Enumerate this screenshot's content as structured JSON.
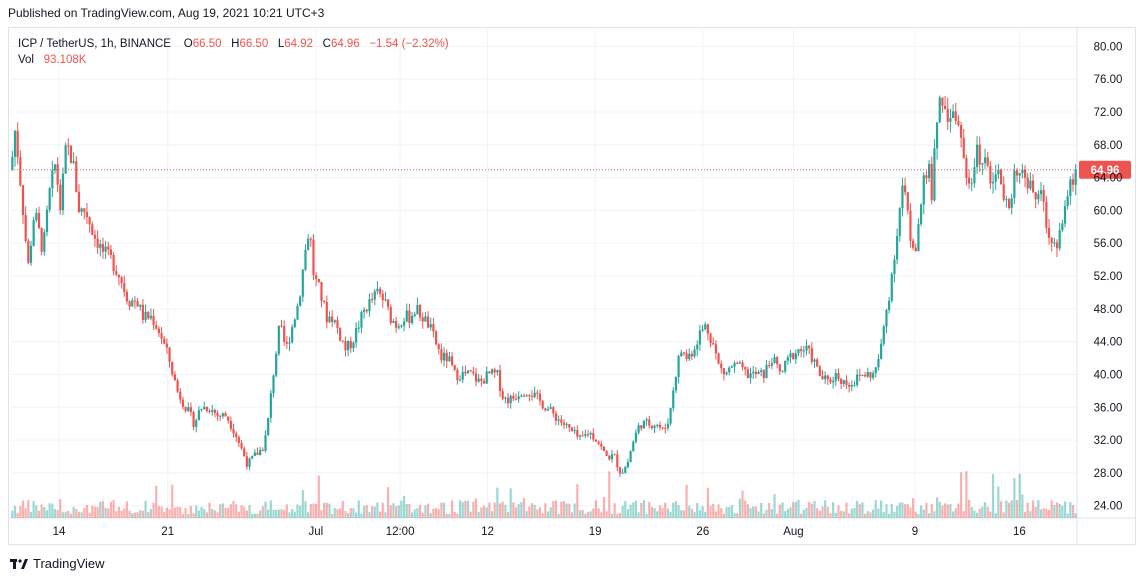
{
  "header": {
    "published": "Published on TradingView.com, Aug 19, 2021 10:21 UTC+3"
  },
  "legend": {
    "symbol": "ICP / TetherUS, 1h, BINANCE",
    "o_label": "O",
    "o_value": "66.50",
    "h_label": "H",
    "h_value": "66.50",
    "l_label": "L",
    "l_value": "64.92",
    "c_label": "C",
    "c_value": "64.96",
    "change": "−1.54 (−2.32%)",
    "vol_label": "Vol",
    "vol_value": "93.108K"
  },
  "footer": {
    "brand": "TradingView",
    "logo_icon": "tradingview-logo-icon"
  },
  "colors": {
    "up": "#26a69a",
    "down": "#ef5350",
    "grid": "#f0f3fa",
    "axis_text": "#131722",
    "price_line": "#ef5350"
  },
  "chart_data": {
    "type": "candlestick",
    "interval": "1h",
    "symbol": "ICP / TetherUS",
    "exchange": "BINANCE",
    "price_axis_side": "right",
    "ylim": [
      22.5,
      82.0
    ],
    "y_ticks": [
      24,
      28,
      32,
      36,
      40,
      44,
      48,
      52,
      56,
      60,
      64,
      68,
      72,
      76,
      80
    ],
    "y_tick_labels": [
      "24.00",
      "28.00",
      "32.00",
      "36.00",
      "40.00",
      "44.00",
      "48.00",
      "52.00",
      "56.00",
      "60.00",
      "64.00",
      "68.00",
      "72.00",
      "76.00",
      "80.00"
    ],
    "x_ticks": [
      {
        "label": "14",
        "pos": 0.045
      },
      {
        "label": "21",
        "pos": 0.147
      },
      {
        "label": "Jul",
        "pos": 0.286
      },
      {
        "label": "12:00",
        "pos": 0.365
      },
      {
        "label": "12",
        "pos": 0.447
      },
      {
        "label": "19",
        "pos": 0.548
      },
      {
        "label": "26",
        "pos": 0.649
      },
      {
        "label": "Aug",
        "pos": 0.734
      },
      {
        "label": "9",
        "pos": 0.848
      },
      {
        "label": "16",
        "pos": 0.946
      }
    ],
    "grid": true,
    "last_price": 64.96,
    "last_price_label": "64.96",
    "close_path": [
      [
        0.0,
        65
      ],
      [
        0.004,
        70
      ],
      [
        0.01,
        62
      ],
      [
        0.016,
        53
      ],
      [
        0.022,
        60
      ],
      [
        0.03,
        55
      ],
      [
        0.036,
        62
      ],
      [
        0.042,
        66
      ],
      [
        0.046,
        60
      ],
      [
        0.052,
        68
      ],
      [
        0.058,
        66
      ],
      [
        0.064,
        60
      ],
      [
        0.07,
        60
      ],
      [
        0.078,
        57
      ],
      [
        0.086,
        55
      ],
      [
        0.094,
        54
      ],
      [
        0.102,
        52
      ],
      [
        0.11,
        49
      ],
      [
        0.118,
        49
      ],
      [
        0.124,
        47
      ],
      [
        0.132,
        47
      ],
      [
        0.14,
        45
      ],
      [
        0.148,
        42
      ],
      [
        0.156,
        38
      ],
      [
        0.164,
        36
      ],
      [
        0.172,
        34
      ],
      [
        0.178,
        36
      ],
      [
        0.186,
        36
      ],
      [
        0.194,
        35
      ],
      [
        0.202,
        35
      ],
      [
        0.21,
        33
      ],
      [
        0.216,
        31
      ],
      [
        0.222,
        29
      ],
      [
        0.228,
        30
      ],
      [
        0.236,
        31
      ],
      [
        0.24,
        33
      ],
      [
        0.246,
        40
      ],
      [
        0.252,
        46
      ],
      [
        0.258,
        43
      ],
      [
        0.264,
        46
      ],
      [
        0.27,
        49
      ],
      [
        0.276,
        55
      ],
      [
        0.28,
        58
      ],
      [
        0.284,
        52
      ],
      [
        0.29,
        50
      ],
      [
        0.296,
        47
      ],
      [
        0.302,
        47
      ],
      [
        0.308,
        45
      ],
      [
        0.314,
        43
      ],
      [
        0.32,
        44
      ],
      [
        0.326,
        46
      ],
      [
        0.332,
        48
      ],
      [
        0.338,
        49
      ],
      [
        0.344,
        50
      ],
      [
        0.35,
        49
      ],
      [
        0.356,
        47
      ],
      [
        0.362,
        46
      ],
      [
        0.368,
        47
      ],
      [
        0.374,
        47
      ],
      [
        0.38,
        48
      ],
      [
        0.386,
        47
      ],
      [
        0.392,
        46
      ],
      [
        0.398,
        44
      ],
      [
        0.404,
        42
      ],
      [
        0.41,
        42
      ],
      [
        0.416,
        40
      ],
      [
        0.424,
        40
      ],
      [
        0.432,
        40
      ],
      [
        0.44,
        39
      ],
      [
        0.448,
        40
      ],
      [
        0.456,
        40
      ],
      [
        0.462,
        37
      ],
      [
        0.47,
        37
      ],
      [
        0.478,
        38
      ],
      [
        0.486,
        38
      ],
      [
        0.494,
        37
      ],
      [
        0.502,
        36
      ],
      [
        0.51,
        35
      ],
      [
        0.518,
        34
      ],
      [
        0.526,
        33
      ],
      [
        0.534,
        32
      ],
      [
        0.542,
        33
      ],
      [
        0.55,
        32
      ],
      [
        0.558,
        30
      ],
      [
        0.566,
        30
      ],
      [
        0.572,
        28
      ],
      [
        0.578,
        29
      ],
      [
        0.584,
        32
      ],
      [
        0.59,
        34
      ],
      [
        0.598,
        34
      ],
      [
        0.606,
        34
      ],
      [
        0.612,
        33
      ],
      [
        0.618,
        35
      ],
      [
        0.622,
        39
      ],
      [
        0.628,
        43
      ],
      [
        0.634,
        42
      ],
      [
        0.64,
        43
      ],
      [
        0.646,
        45
      ],
      [
        0.652,
        46
      ],
      [
        0.658,
        44
      ],
      [
        0.664,
        41
      ],
      [
        0.67,
        40
      ],
      [
        0.676,
        41
      ],
      [
        0.682,
        41
      ],
      [
        0.69,
        40
      ],
      [
        0.698,
        40
      ],
      [
        0.706,
        40
      ],
      [
        0.714,
        42
      ],
      [
        0.722,
        40
      ],
      [
        0.73,
        42
      ],
      [
        0.738,
        43
      ],
      [
        0.746,
        43
      ],
      [
        0.752,
        42
      ],
      [
        0.758,
        40
      ],
      [
        0.766,
        39
      ],
      [
        0.774,
        40
      ],
      [
        0.782,
        39
      ],
      [
        0.79,
        39
      ],
      [
        0.798,
        40
      ],
      [
        0.804,
        40
      ],
      [
        0.81,
        40
      ],
      [
        0.816,
        43
      ],
      [
        0.82,
        47
      ],
      [
        0.824,
        50
      ],
      [
        0.828,
        54
      ],
      [
        0.832,
        58
      ],
      [
        0.836,
        63
      ],
      [
        0.84,
        61
      ],
      [
        0.844,
        56
      ],
      [
        0.848,
        55
      ],
      [
        0.852,
        58
      ],
      [
        0.856,
        63
      ],
      [
        0.86,
        66
      ],
      [
        0.864,
        62
      ],
      [
        0.868,
        70
      ],
      [
        0.872,
        75
      ],
      [
        0.876,
        72
      ],
      [
        0.88,
        71
      ],
      [
        0.884,
        73
      ],
      [
        0.888,
        71
      ],
      [
        0.892,
        68
      ],
      [
        0.896,
        65
      ],
      [
        0.9,
        62
      ],
      [
        0.906,
        67
      ],
      [
        0.912,
        66
      ],
      [
        0.918,
        64
      ],
      [
        0.924,
        65
      ],
      [
        0.93,
        63
      ],
      [
        0.936,
        60
      ],
      [
        0.942,
        65
      ],
      [
        0.948,
        66
      ],
      [
        0.954,
        63
      ],
      [
        0.96,
        62
      ],
      [
        0.966,
        62
      ],
      [
        0.972,
        58
      ],
      [
        0.976,
        56
      ],
      [
        0.982,
        56
      ],
      [
        0.988,
        60
      ],
      [
        0.994,
        63
      ],
      [
        1.0,
        65
      ]
    ]
  }
}
